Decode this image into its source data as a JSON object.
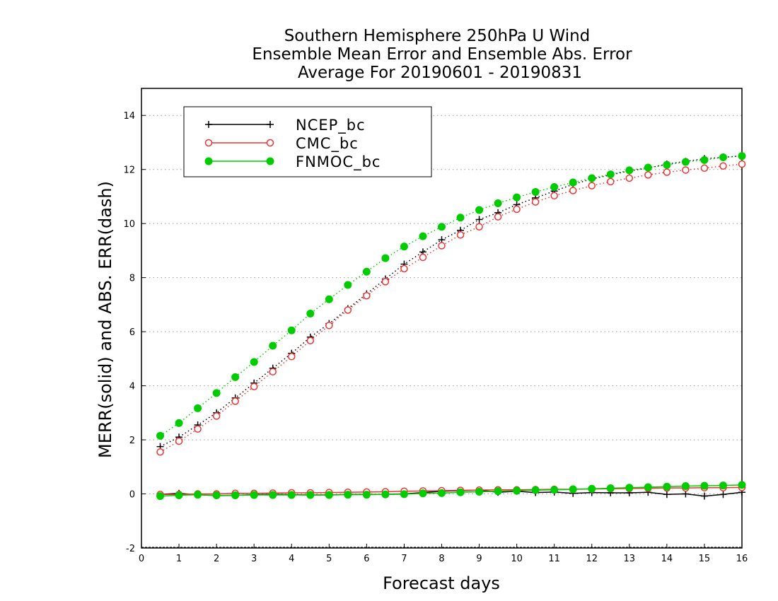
{
  "chart_data": {
    "type": "line",
    "title": [
      "Southern Hemisphere 250hPa U Wind",
      "Ensemble Mean Error and Ensemble Abs. Error",
      "Average For 20190601 - 20190831"
    ],
    "xlabel": "Forecast days",
    "ylabel": "MERR(solid) and ABS. ERR(dash)",
    "xlim": [
      0,
      16
    ],
    "ylim": [
      -2,
      15
    ],
    "xticks": [
      "0",
      "1",
      "2",
      "3",
      "4",
      "5",
      "6",
      "7",
      "8",
      "9",
      "10",
      "11",
      "12",
      "13",
      "14",
      "15",
      "16"
    ],
    "yticks": [
      "-2",
      "0",
      "2",
      "4",
      "6",
      "8",
      "10",
      "12",
      "14"
    ],
    "ytick_values": [
      -2,
      0,
      2,
      4,
      6,
      8,
      10,
      12,
      14
    ],
    "grid": "horizontal dotted",
    "legend": {
      "position": "top-left",
      "entries": [
        "NCEP_bc",
        "CMC_bc",
        "FNMOC_bc"
      ]
    },
    "x": [
      0.5,
      1,
      1.5,
      2,
      2.5,
      3,
      3.5,
      4,
      4.5,
      5,
      5.5,
      6,
      6.5,
      7,
      7.5,
      8,
      8.5,
      9,
      9.5,
      10,
      10.5,
      11,
      11.5,
      12,
      12.5,
      13,
      13.5,
      14,
      14.5,
      15,
      15.5,
      16
    ],
    "series": [
      {
        "name": "NCEP_bc",
        "color": "#000000",
        "marker": "plus",
        "merr": [
          -0.02,
          0.02,
          -0.03,
          -0.06,
          -0.05,
          -0.03,
          -0.02,
          -0.03,
          -0.04,
          -0.04,
          -0.02,
          -0.02,
          -0.02,
          0.0,
          0.05,
          0.1,
          0.12,
          0.14,
          0.06,
          0.1,
          0.05,
          0.07,
          0.02,
          0.05,
          0.04,
          0.04,
          0.06,
          -0.02,
          0.0,
          -0.08,
          -0.02,
          0.06
        ],
        "abs_err": [
          1.75,
          2.1,
          2.55,
          3.0,
          3.55,
          4.1,
          4.65,
          5.2,
          5.8,
          6.3,
          6.85,
          7.4,
          7.95,
          8.5,
          8.95,
          9.4,
          9.75,
          10.15,
          10.4,
          10.7,
          10.95,
          11.2,
          11.45,
          11.65,
          11.8,
          11.95,
          12.05,
          12.2,
          12.3,
          12.4,
          12.45,
          12.5
        ]
      },
      {
        "name": "CMC_bc",
        "color": "#ee3333",
        "marker": "open-circle",
        "merr": [
          -0.02,
          -0.02,
          0.0,
          0.0,
          0.02,
          0.02,
          0.03,
          0.04,
          0.04,
          0.05,
          0.06,
          0.07,
          0.08,
          0.1,
          0.11,
          0.12,
          0.13,
          0.14,
          0.15,
          0.15,
          0.16,
          0.17,
          0.17,
          0.18,
          0.19,
          0.2,
          0.21,
          0.22,
          0.22,
          0.23,
          0.23,
          0.24
        ],
        "abs_err": [
          1.55,
          1.95,
          2.4,
          2.88,
          3.43,
          3.97,
          4.52,
          5.08,
          5.67,
          6.23,
          6.8,
          7.33,
          7.85,
          8.33,
          8.75,
          9.18,
          9.58,
          9.88,
          10.25,
          10.53,
          10.8,
          11.03,
          11.22,
          11.4,
          11.55,
          11.68,
          11.8,
          11.9,
          11.98,
          12.05,
          12.13,
          12.2
        ]
      },
      {
        "name": "FNMOC_bc",
        "color": "#00cc00",
        "marker": "filled-circle",
        "merr": [
          -0.08,
          -0.05,
          -0.03,
          -0.05,
          -0.05,
          -0.04,
          -0.04,
          -0.04,
          -0.04,
          -0.04,
          -0.03,
          -0.03,
          -0.02,
          -0.01,
          0.02,
          0.03,
          0.06,
          0.08,
          0.1,
          0.12,
          0.14,
          0.15,
          0.17,
          0.19,
          0.21,
          0.23,
          0.25,
          0.27,
          0.29,
          0.3,
          0.31,
          0.33
        ],
        "abs_err": [
          2.15,
          2.62,
          3.17,
          3.73,
          4.32,
          4.88,
          5.48,
          6.05,
          6.67,
          7.2,
          7.73,
          8.22,
          8.72,
          9.15,
          9.53,
          9.88,
          10.22,
          10.5,
          10.75,
          10.97,
          11.17,
          11.35,
          11.52,
          11.68,
          11.82,
          11.97,
          12.07,
          12.17,
          12.28,
          12.35,
          12.45,
          12.5
        ]
      }
    ]
  }
}
